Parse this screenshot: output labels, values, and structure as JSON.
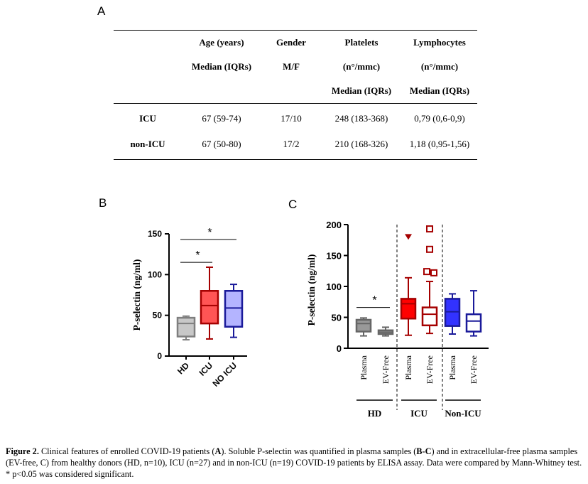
{
  "panel_a": {
    "letter": "A",
    "headers": {
      "age": [
        "Age (years)",
        "Median (IQRs)"
      ],
      "gender": [
        "Gender",
        "M/F"
      ],
      "platelets": [
        "Platelets",
        "(n°/mmc)",
        "Median (IQRs)"
      ],
      "lymphocytes": [
        "Lymphocytes",
        "(n°/mmc)",
        "Median (IQRs)"
      ]
    },
    "rows": [
      {
        "label": "ICU",
        "age": "67 (59-74)",
        "gender": "17/10",
        "platelets": "248 (183-368)",
        "lymphocytes": "0,79 (0,6-0,9)"
      },
      {
        "label": "non-ICU",
        "age": "67 (50-80)",
        "gender": "17/2",
        "platelets": "210 (168-326)",
        "lymphocytes": "1,18 (0,95-1,56)"
      }
    ]
  },
  "panel_b": {
    "letter": "B"
  },
  "panel_c": {
    "letter": "C"
  },
  "colors": {
    "hd_fill": "#c8c8c8",
    "hd_stroke": "#7f7f7f",
    "icu_fill": "#ff5555",
    "icu_stroke": "#a50000",
    "nonicu_fill": "#b4b4ff",
    "nonicu_stroke": "#1a1a9a",
    "c_hd_fill": "#999999",
    "c_hd_stroke": "#666666",
    "c_icu_fill": "#ff0000",
    "c_icu_stroke": "#a50000",
    "c_nonicu_fill": "#3232ff",
    "c_nonicu_stroke": "#1a1a9a"
  },
  "chart_data": [
    {
      "type": "box",
      "panel": "B",
      "ylabel": "P-selectin (ng/ml)",
      "ylim": [
        0,
        150
      ],
      "yticks": [
        0,
        50,
        100,
        150
      ],
      "categories": [
        "HD",
        "ICU",
        "NO ICU"
      ],
      "boxes": [
        {
          "category": "HD",
          "min": 20,
          "q1": 24,
          "median": 40,
          "q3": 47,
          "max": 49,
          "style": "hd"
        },
        {
          "category": "ICU",
          "min": 21,
          "q1": 40,
          "median": 62,
          "q3": 80,
          "max": 109,
          "style": "icu"
        },
        {
          "category": "NO ICU",
          "min": 23,
          "q1": 36,
          "median": 59,
          "q3": 80,
          "max": 88,
          "style": "nonicu"
        }
      ],
      "significance": [
        {
          "from": "HD",
          "to": "ICU",
          "label": "*",
          "y": 115
        },
        {
          "from": "HD",
          "to": "NO ICU",
          "label": "*",
          "y": 143
        }
      ]
    },
    {
      "type": "box",
      "panel": "C",
      "ylabel": "P-selectin (ng/ml)",
      "ylim": [
        0,
        200
      ],
      "yticks": [
        0,
        50,
        100,
        150,
        200
      ],
      "categories": [
        "Plasma",
        "EV-Free",
        "Plasma",
        "EV-Free",
        "Plasma",
        "EV-Free"
      ],
      "groups": [
        "HD",
        "ICU",
        "Non-ICU"
      ],
      "boxes": [
        {
          "group": "HD",
          "category": "Plasma",
          "min": 20,
          "q1": 27,
          "median": 40,
          "q3": 46,
          "max": 49,
          "filled": true,
          "style": "c_hd"
        },
        {
          "group": "HD",
          "category": "EV-Free",
          "min": 20,
          "q1": 23,
          "median": 26,
          "q3": 29,
          "max": 34,
          "filled": true,
          "style": "c_hd"
        },
        {
          "group": "ICU",
          "category": "Plasma",
          "min": 21,
          "q1": 48,
          "median": 72,
          "q3": 80,
          "max": 114,
          "filled": true,
          "style": "c_icu",
          "outliers": [
            180
          ],
          "outlier_marker": "triangle-down"
        },
        {
          "group": "ICU",
          "category": "EV-Free",
          "min": 24,
          "q1": 37,
          "median": 55,
          "q3": 66,
          "max": 108,
          "filled": false,
          "style": "c_icu",
          "outliers": [
            122,
            124,
            160,
            193
          ],
          "outlier_marker": "square"
        },
        {
          "group": "Non-ICU",
          "category": "Plasma",
          "min": 23,
          "q1": 36,
          "median": 59,
          "q3": 80,
          "max": 88,
          "filled": true,
          "style": "c_nonicu"
        },
        {
          "group": "Non-ICU",
          "category": "EV-Free",
          "min": 20,
          "q1": 27,
          "median": 44,
          "q3": 55,
          "max": 93,
          "filled": false,
          "style": "c_nonicu"
        }
      ],
      "significance": [
        {
          "from": 0,
          "to": 1,
          "label": "*",
          "y": 66
        }
      ]
    }
  ],
  "caption": {
    "figure_label": "Figure 2.",
    "part1": " Clinical features of enrolled COVID-19 patients (",
    "a": "A",
    "part2": "). Soluble P-selectin was quantified in plasma samples (",
    "bc": "B-C",
    "part3": ") and in extracellular-free plasma samples (EV-free, C) from    healthy donors (HD, n=10), ICU (n=27) and in non-ICU (n=19) COVID-19 patients by ELISA assay. Data were compared by Mann-Whitney test. * p<0.05 was considered significant."
  }
}
